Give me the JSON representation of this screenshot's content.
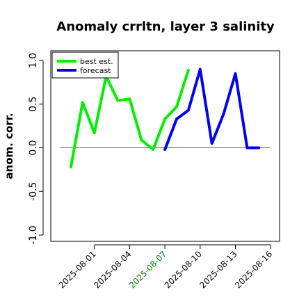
{
  "chart_data": {
    "type": "line",
    "title": "Anomaly crrltn, layer 3 salinity",
    "xlabel": "",
    "ylabel": "anom. corr.",
    "ylim": [
      -1.0,
      1.0
    ],
    "yticks": [
      -1.0,
      -0.5,
      0.0,
      0.5,
      1.0
    ],
    "ytick_labels": [
      "-1.0",
      "-0.5",
      "0.0",
      "0.5",
      "1.0"
    ],
    "xtick_labels": [
      "2025-08-01",
      "2025-08-04",
      "2025-08-07",
      "2025-08-10",
      "2025-08-13",
      "2025-08-16"
    ],
    "xtick_colors": [
      "#000000",
      "#000000",
      "#008000",
      "#000000",
      "#000000",
      "#000000"
    ],
    "reference_line": 0.0,
    "legend_position": "top-left",
    "series": [
      {
        "name": "best est.",
        "color": "#00ee00",
        "x": [
          "2025-07-30",
          "2025-07-31",
          "2025-08-01",
          "2025-08-02",
          "2025-08-03",
          "2025-08-04",
          "2025-08-05",
          "2025-08-06",
          "2025-08-07",
          "2025-08-08",
          "2025-08-09"
        ],
        "values": [
          -0.22,
          0.52,
          0.17,
          0.82,
          0.54,
          0.56,
          0.09,
          -0.02,
          0.33,
          0.47,
          0.89
        ]
      },
      {
        "name": "forecast",
        "color": "#0000ee",
        "x": [
          "2025-08-07",
          "2025-08-08",
          "2025-08-09",
          "2025-08-10",
          "2025-08-11",
          "2025-08-12",
          "2025-08-13",
          "2025-08-14",
          "2025-08-15"
        ],
        "values": [
          -0.02,
          0.33,
          0.43,
          0.9,
          0.05,
          0.39,
          0.85,
          0.0,
          0.0
        ]
      }
    ]
  }
}
